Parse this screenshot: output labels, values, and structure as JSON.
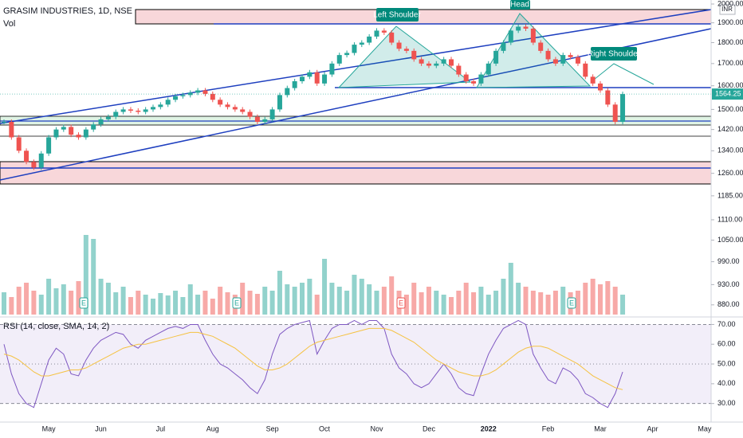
{
  "chart_data": [
    {
      "type": "candlestick",
      "title": "GRASIM INDUSTRIES, 1D, NSE",
      "currency": "INR",
      "log": true,
      "annotations": [
        "Left Shoulder",
        "Head",
        "Right Shoulder"
      ],
      "up_color": "#26a69a",
      "down_color": "#ef5350",
      "categories": [
        null,
        null,
        null,
        null,
        null,
        null,
        "May",
        null,
        null,
        null,
        null,
        null,
        null,
        "Jun",
        null,
        null,
        null,
        null,
        null,
        null,
        null,
        "Jul",
        null,
        null,
        null,
        null,
        null,
        null,
        "Aug",
        null,
        null,
        null,
        null,
        null,
        null,
        null,
        "Sep",
        null,
        null,
        null,
        null,
        null,
        null,
        "Oct",
        null,
        null,
        null,
        null,
        null,
        null,
        "Nov",
        null,
        null,
        null,
        null,
        null,
        null,
        "Dec",
        null,
        null,
        null,
        null,
        null,
        null,
        null,
        "2022",
        null,
        null,
        null,
        null,
        null,
        null,
        null,
        "Feb",
        null,
        null,
        null,
        null,
        null,
        null,
        "Mar",
        null,
        null,
        null,
        null,
        null,
        null,
        "Apr",
        null,
        null,
        null,
        null,
        null,
        null,
        "May"
      ],
      "values": [
        1450,
        1390,
        1340,
        1300,
        1280,
        1330,
        1390,
        1420,
        1430,
        1400,
        1390,
        1420,
        1440,
        1460,
        1470,
        1490,
        1500,
        1495,
        1490,
        1500,
        1510,
        1520,
        1540,
        1555,
        1560,
        1570,
        1580,
        1565,
        1540,
        1520,
        1510,
        1500,
        1490,
        1470,
        1450,
        1460,
        1500,
        1560,
        1590,
        1620,
        1640,
        1660,
        1610,
        1650,
        1700,
        1740,
        1750,
        1790,
        1800,
        1830,
        1860,
        1850,
        1800,
        1770,
        1760,
        1720,
        1700,
        1690,
        1700,
        1720,
        1690,
        1650,
        1620,
        1610,
        1650,
        1700,
        1760,
        1800,
        1860,
        1880,
        1870,
        1800,
        1760,
        1720,
        1700,
        1740,
        1730,
        1700,
        1640,
        1610,
        1580,
        1520,
        1450,
        1564.25,
        null,
        null,
        null,
        null,
        null,
        null,
        null,
        null,
        null,
        null,
        null
      ],
      "value_labels": [
        null,
        null,
        null,
        null,
        null,
        null,
        null,
        null,
        null,
        null,
        null,
        null,
        null,
        null,
        null,
        null,
        null,
        null,
        null,
        null,
        null,
        null,
        null,
        null,
        null,
        null,
        null,
        null,
        null,
        null,
        null,
        null,
        null,
        null,
        null,
        null,
        null,
        null,
        null,
        null,
        null,
        null,
        null,
        null,
        null,
        null,
        null,
        null,
        null,
        null,
        null,
        null,
        null,
        null,
        null,
        null,
        null,
        null,
        null,
        null,
        null,
        null,
        null,
        null,
        null,
        null,
        null,
        null,
        null,
        null,
        null,
        null,
        null,
        null,
        null,
        null,
        null,
        null,
        null,
        null,
        null,
        null,
        null,
        "1564.25",
        null,
        null,
        null,
        null,
        null,
        null,
        null,
        null,
        null,
        null,
        null
      ],
      "ylim": [
        857,
        2022
      ],
      "yticks": [
        {
          "value": 2000,
          "label": "2000.00"
        },
        {
          "value": 1900,
          "label": "1900.00"
        },
        {
          "value": 1800,
          "label": "1800.00"
        },
        {
          "value": 1700,
          "label": "1700.00"
        },
        {
          "value": 1600,
          "label": "1600.00"
        },
        {
          "value": 1500,
          "label": "1500.00"
        },
        {
          "value": 1420,
          "label": "1420.00"
        },
        {
          "value": 1340,
          "label": "1340.00"
        },
        {
          "value": 1260,
          "label": "1260.00"
        },
        {
          "value": 1185,
          "label": "1185.00"
        },
        {
          "value": 1110,
          "label": "1110.00"
        },
        {
          "value": 1050,
          "label": "1050.00"
        },
        {
          "value": 990,
          "label": "990.00"
        },
        {
          "value": 930,
          "label": "930.00"
        },
        {
          "value": 880,
          "label": "880.00"
        }
      ]
    },
    {
      "type": "bar",
      "title": "Vol",
      "earnings": [
        "E",
        "E",
        "E",
        "E"
      ],
      "values": [
        28,
        22,
        35,
        40,
        30,
        25,
        45,
        33,
        38,
        30,
        42,
        100,
        95,
        45,
        40,
        28,
        35,
        22,
        30,
        25,
        20,
        27,
        24,
        30,
        22,
        38,
        25,
        30,
        20,
        35,
        28,
        25,
        40,
        30,
        26,
        35,
        30,
        55,
        38,
        35,
        40,
        45,
        25,
        70,
        40,
        35,
        30,
        50,
        45,
        38,
        30,
        35,
        48,
        30,
        25,
        40,
        28,
        35,
        30,
        25,
        22,
        30,
        40,
        28,
        35,
        25,
        30,
        45,
        65,
        40,
        35,
        30,
        28,
        25,
        30,
        35,
        28,
        30,
        40,
        45,
        38,
        42,
        35,
        25
      ],
      "ylim": [
        0,
        100
      ]
    },
    {
      "type": "line",
      "title": "RSI (14, close, SMA, 14, 2)",
      "series": [
        {
          "color": "#7e57c2",
          "values": [
            60,
            45,
            35,
            30,
            28,
            40,
            52,
            58,
            55,
            45,
            44,
            52,
            58,
            62,
            64,
            66,
            65,
            60,
            58,
            62,
            64,
            66,
            68,
            69,
            68,
            70,
            70,
            62,
            55,
            50,
            48,
            45,
            42,
            38,
            35,
            42,
            55,
            65,
            68,
            70,
            71,
            72,
            55,
            62,
            68,
            70,
            70,
            72,
            70,
            72,
            72,
            68,
            55,
            48,
            45,
            40,
            38,
            40,
            45,
            50,
            45,
            38,
            35,
            34,
            45,
            55,
            62,
            68,
            70,
            72,
            70,
            55,
            48,
            42,
            40,
            48,
            46,
            42,
            35,
            33,
            30,
            28,
            35,
            46
          ]
        },
        {
          "color": "#f5c242",
          "values": [
            55,
            54,
            52,
            49,
            46,
            44,
            44,
            45,
            46,
            47,
            47,
            48,
            50,
            52,
            54,
            56,
            58,
            59,
            60,
            60,
            61,
            62,
            63,
            64,
            65,
            66,
            66,
            65,
            64,
            62,
            60,
            58,
            55,
            52,
            49,
            47,
            47,
            48,
            50,
            53,
            56,
            59,
            61,
            62,
            63,
            64,
            65,
            66,
            67,
            68,
            68,
            68,
            67,
            65,
            63,
            61,
            58,
            55,
            52,
            50,
            48,
            46,
            45,
            44,
            44,
            45,
            47,
            50,
            53,
            56,
            58,
            59,
            59,
            58,
            56,
            54,
            52,
            50,
            47,
            44,
            42,
            40,
            38,
            37
          ]
        }
      ],
      "ylim": [
        20.6,
        73
      ],
      "yticks": [
        {
          "value": 70,
          "label": "70.00"
        },
        {
          "value": 60,
          "label": "60.00"
        },
        {
          "value": 50,
          "label": "50.00"
        },
        {
          "value": 40,
          "label": "40.00"
        },
        {
          "value": 30,
          "label": "30.00"
        }
      ]
    }
  ]
}
